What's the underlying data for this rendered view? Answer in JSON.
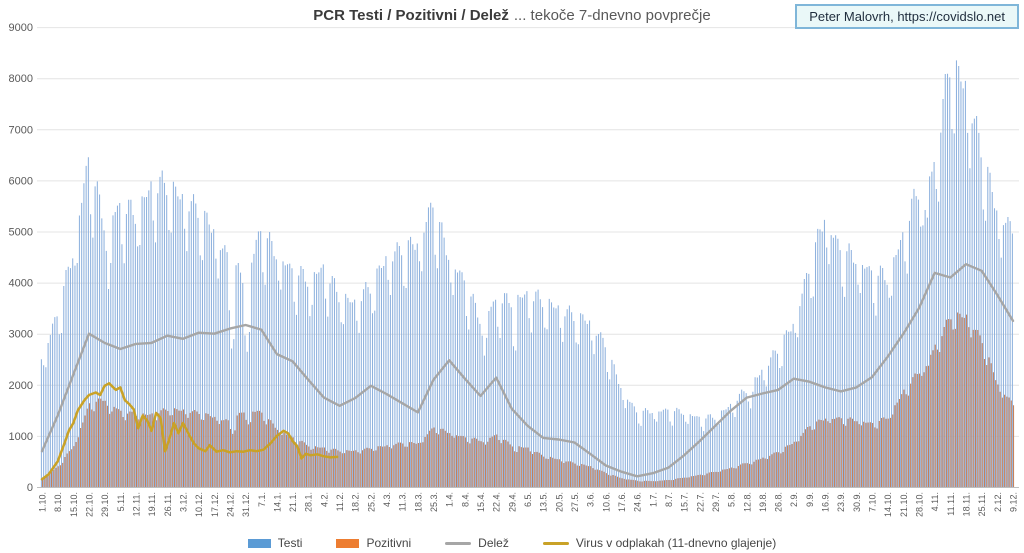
{
  "title": {
    "bold": "PCR Testi / Pozitivni / Delež",
    "rest": "... tekoče 7-dnevno povprečje"
  },
  "annotation": {
    "text": "Peter Malovrh, https://covidslo.net"
  },
  "colors": {
    "annotation_border": "#7fb6d9",
    "annotation_fill": "#eaf8f8",
    "gridline": "#e4e4e4",
    "axis_line": "#bfbfbf",
    "axis_text": "#595959",
    "title_text": "#3b3b3b"
  },
  "chart_data": {
    "type": "bar",
    "title": "PCR Testi / Pozitivni / Delež ... tekoče 7-dnevno povprečje",
    "xlabel": "",
    "ylabel": "",
    "ylim": [
      0,
      9000
    ],
    "y_ticks": [
      0,
      1000,
      2000,
      3000,
      4000,
      5000,
      6000,
      7000,
      8000,
      9000
    ],
    "grid": "horizontal",
    "legend_position": "bottom",
    "x_resolution": "daily bars, weekly tick labels (7 days per label)",
    "x_tick_labels": [
      "1.10.",
      "8.10.",
      "15.10.",
      "22.10.",
      "29.10.",
      "5.11.",
      "12.11.",
      "19.11.",
      "26.11.",
      "3.12.",
      "10.12.",
      "17.12.",
      "24.12.",
      "31.12.",
      "7.1.",
      "14.1.",
      "21.1.",
      "28.1.",
      "4.2.",
      "11.2.",
      "18.2.",
      "25.2.",
      "4.3.",
      "11.3.",
      "18.3.",
      "25.3.",
      "1.4.",
      "8.4.",
      "15.4.",
      "22.4.",
      "29.4.",
      "6.5.",
      "13.5.",
      "20.5.",
      "27.5.",
      "3.6.",
      "10.6.",
      "17.6.",
      "24.6.",
      "1.7.",
      "8.7.",
      "15.7.",
      "22.7.",
      "29.7.",
      "5.8.",
      "12.8.",
      "19.8.",
      "26.8.",
      "2.9.",
      "9.9.",
      "16.9.",
      "23.9.",
      "30.9.",
      "7.10.",
      "14.10.",
      "21.10.",
      "28.10.",
      "4.11.",
      "11.11.",
      "18.11.",
      "25.11.",
      "2.12.",
      "9.12."
    ],
    "series": [
      {
        "name": "Testi",
        "type": "bar",
        "color": "#5B9BD5",
        "bar_color": "#8fb2de",
        "weekly_values": [
          2450,
          3250,
          4450,
          6200,
          5050,
          5300,
          5200,
          5700,
          5750,
          5500,
          5250,
          4900,
          4250,
          3950,
          4850,
          4450,
          4100,
          3950,
          4150,
          3650,
          3500,
          3800,
          4350,
          4500,
          4650,
          5350,
          4400,
          3900,
          3200,
          3500,
          3550,
          3650,
          3550,
          3400,
          3250,
          3150,
          2700,
          1900,
          1420,
          1440,
          1455,
          1420,
          1310,
          1330,
          1550,
          1850,
          2200,
          2600,
          3100,
          4100,
          5150,
          4490,
          4360,
          4060,
          3990,
          4750,
          5680,
          6070,
          8050,
          7650,
          6400,
          5280,
          4850
        ]
      },
      {
        "name": "Pozitivni",
        "type": "bar",
        "color": "#ED7D31",
        "bar_color": "#c57f58",
        "weekly_values": [
          150,
          400,
          800,
          1600,
          1700,
          1450,
          1400,
          1400,
          1500,
          1480,
          1430,
          1350,
          1250,
          1500,
          1430,
          1120,
          950,
          800,
          750,
          700,
          700,
          750,
          800,
          850,
          850,
          1150,
          1050,
          950,
          900,
          1000,
          800,
          750,
          600,
          530,
          460,
          400,
          270,
          170,
          120,
          115,
          135,
          185,
          235,
          300,
          370,
          470,
          560,
          680,
          870,
          1180,
          1330,
          1320,
          1290,
          1220,
          1350,
          1850,
          2240,
          2710,
          3300,
          3300,
          2810,
          1980,
          1580
        ]
      },
      {
        "name": "Delež",
        "type": "line",
        "color": "#A6A6A6",
        "weekly_values": [
          700,
          1400,
          2200,
          3000,
          2820,
          2700,
          2800,
          2820,
          2960,
          2900,
          3020,
          3000,
          3100,
          3170,
          3080,
          2600,
          2460,
          2100,
          1750,
          1590,
          1740,
          1980,
          1820,
          1640,
          1460,
          2100,
          2480,
          2120,
          1780,
          2140,
          1530,
          1200,
          960,
          930,
          870,
          650,
          420,
          300,
          210,
          270,
          380,
          620,
          900,
          1200,
          1500,
          1750,
          1830,
          1900,
          2120,
          2060,
          1950,
          1870,
          1950,
          2150,
          2550,
          3000,
          3500,
          4190,
          4100,
          4360,
          4230,
          3760,
          3250
        ]
      },
      {
        "name": "Virus v odplakah (11-dnevno glajenje)",
        "type": "line",
        "color": "#C9A227",
        "points_day_value": [
          [
            0,
            150
          ],
          [
            3,
            250
          ],
          [
            7,
            500
          ],
          [
            10,
            850
          ],
          [
            12,
            1100
          ],
          [
            14,
            1250
          ],
          [
            16,
            1500
          ],
          [
            19,
            1700
          ],
          [
            21,
            1800
          ],
          [
            24,
            1850
          ],
          [
            26,
            1800
          ],
          [
            28,
            1980
          ],
          [
            30,
            2030
          ],
          [
            33,
            1900
          ],
          [
            35,
            1950
          ],
          [
            37,
            1700
          ],
          [
            39,
            1620
          ],
          [
            41,
            1520
          ],
          [
            43,
            1150
          ],
          [
            45,
            1400
          ],
          [
            47,
            1300
          ],
          [
            49,
            1100
          ],
          [
            51,
            1450
          ],
          [
            53,
            1350
          ],
          [
            55,
            700
          ],
          [
            57,
            950
          ],
          [
            59,
            1250
          ],
          [
            61,
            1050
          ],
          [
            63,
            1250
          ],
          [
            66,
            1000
          ],
          [
            68,
            850
          ],
          [
            70,
            760
          ],
          [
            73,
            700
          ],
          [
            75,
            820
          ],
          [
            78,
            690
          ],
          [
            81,
            720
          ],
          [
            84,
            680
          ],
          [
            87,
            700
          ],
          [
            90,
            690
          ],
          [
            93,
            720
          ],
          [
            96,
            700
          ],
          [
            99,
            730
          ],
          [
            102,
            850
          ],
          [
            105,
            1000
          ],
          [
            108,
            1100
          ],
          [
            110,
            1050
          ],
          [
            112,
            900
          ],
          [
            114,
            800
          ],
          [
            116,
            560
          ],
          [
            118,
            650
          ],
          [
            120,
            620
          ],
          [
            123,
            640
          ],
          [
            126,
            600
          ],
          [
            129,
            580
          ],
          [
            132,
            590
          ]
        ]
      }
    ],
    "render_hints": {
      "days_total": 434,
      "weekday_mod": [
        0.02,
        -0.1,
        -0.14,
        0.03,
        0.05,
        0.05,
        0.03
      ],
      "wiggle_amp": 0.03,
      "holiday_dips": {
        "30": 0.85,
        "31": 0.82,
        "84": 0.8,
        "85": 0.74,
        "86": 0.82,
        "91": 0.74,
        "92": 0.7,
        "93": 0.82,
        "120": 0.93,
        "198": 0.88,
        "199": 0.85,
        "211": 0.86,
        "212": 0.84,
        "317": 0.9,
        "318": 0.88,
        "395": 0.88,
        "396": 0.86
      }
    }
  }
}
